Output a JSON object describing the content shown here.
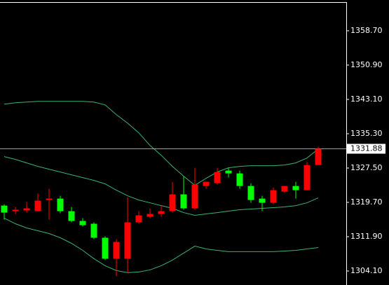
{
  "chart_data": {
    "type": "candlestick",
    "categories": [
      null,
      null,
      null,
      null,
      null,
      null,
      null,
      null,
      null,
      null,
      null,
      null,
      null,
      null,
      null,
      null,
      null,
      null,
      null,
      null,
      null,
      null,
      null,
      null,
      null,
      null,
      null,
      null,
      null
    ],
    "open": [
      1318.97,
      1317.7,
      1317.86,
      1317.7,
      1320.24,
      1320.56,
      1317.7,
      1315.48,
      1314.84,
      1311.66,
      1306.9,
      1306.9,
      1315.16,
      1316.43,
      1317.07,
      1317.7,
      1321.52,
      1318.34,
      1323.42,
      1324.06,
      1326.92,
      1326.28,
      1323.42,
      1320.56,
      1319.61,
      1322.15,
      1323.42,
      1322.47,
      1328.19
    ],
    "high": [
      1319.29,
      1318.66,
      1319.77,
      1321.67,
      1322.79,
      1321.2,
      1318.66,
      1316.11,
      1315.16,
      1311.98,
      1311.34,
      1320.88,
      1317.7,
      1318.34,
      1318.97,
      1324.38,
      1325.65,
      1327.55,
      1324.38,
      1327.55,
      1327.55,
      1326.92,
      1324.06,
      1321.2,
      1323.1,
      1323.42,
      1324.38,
      1328.83,
      1332.32
    ],
    "low": [
      1315.8,
      1317.07,
      1317.38,
      1317.7,
      1315.8,
      1317.23,
      1315.16,
      1314.2,
      1311.34,
      1306.58,
      1302.92,
      1303.72,
      1314.84,
      1316.11,
      1316.43,
      1317.38,
      1318.02,
      1318.02,
      1322.79,
      1323.74,
      1325.33,
      1322.79,
      1319.61,
      1317.7,
      1319.29,
      1321.83,
      1320.56,
      1322.47,
      1328.19
    ],
    "close": [
      1317.38,
      1318.02,
      1318.34,
      1320.09,
      1320.56,
      1317.7,
      1315.48,
      1314.52,
      1311.66,
      1306.9,
      1310.71,
      1315.16,
      1316.75,
      1317.07,
      1317.7,
      1321.52,
      1318.34,
      1323.74,
      1324.38,
      1326.6,
      1326.28,
      1323.42,
      1320.24,
      1319.61,
      1322.47,
      1323.42,
      1322.47,
      1328.19,
      1331.88
    ],
    "up_color": "#ff0000",
    "down_color": "#00ff00",
    "bands": [
      {
        "color": "#3cb371",
        "values": [
          1342.01,
          1342.33,
          1342.49,
          1342.65,
          1342.65,
          1342.65,
          1342.65,
          1342.65,
          1342.49,
          1341.85,
          1339.63,
          1337.72,
          1335.5,
          1332.64,
          1330.41,
          1327.87,
          1325.65,
          1323.58,
          1325.17,
          1326.6,
          1327.55,
          1327.87,
          1328.03,
          1328.03,
          1328.03,
          1328.19,
          1328.67,
          1329.78,
          1331.84
        ]
      },
      {
        "color": "#3cb371",
        "values": [
          1330.1,
          1329.46,
          1328.67,
          1327.87,
          1327.24,
          1326.6,
          1325.96,
          1325.33,
          1324.69,
          1323.9,
          1322.47,
          1321.2,
          1320.24,
          1319.61,
          1318.97,
          1318.34,
          1317.38,
          1316.75,
          1317.07,
          1317.38,
          1317.7,
          1318.02,
          1318.18,
          1318.34,
          1318.5,
          1318.66,
          1318.97,
          1319.61,
          1320.72
        ]
      },
      {
        "color": "#3cb371",
        "values": [
          1316.11,
          1314.84,
          1313.89,
          1313.25,
          1312.62,
          1311.66,
          1310.39,
          1308.8,
          1306.9,
          1305.31,
          1304.2,
          1303.72,
          1303.88,
          1304.35,
          1305.31,
          1306.58,
          1308.17,
          1309.76,
          1309.12,
          1308.8,
          1308.49,
          1308.49,
          1308.49,
          1308.49,
          1308.49,
          1308.64,
          1308.8,
          1309.12,
          1309.44
        ]
      }
    ],
    "last_price": 1331.88,
    "ylim": [
      1300.92,
      1365.69
    ],
    "yticks": [
      {
        "value": 1358.7,
        "label": "1358.70"
      },
      {
        "value": 1350.9,
        "label": "1350.90"
      },
      {
        "value": 1343.1,
        "label": "1343.10"
      },
      {
        "value": 1335.3,
        "label": "1335.30"
      },
      {
        "value": 1327.5,
        "label": "1327.50"
      },
      {
        "value": 1319.7,
        "label": "1319.70"
      },
      {
        "value": 1311.9,
        "label": "1311.90"
      },
      {
        "value": 1304.1,
        "label": "1304.10"
      }
    ]
  }
}
